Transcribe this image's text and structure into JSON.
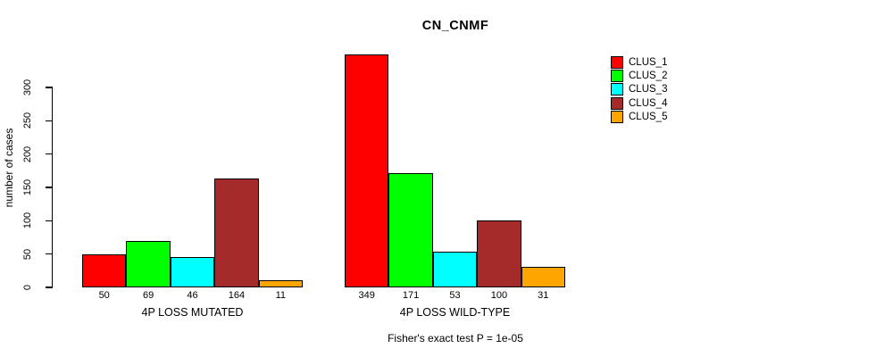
{
  "chart_data": {
    "type": "bar",
    "title": "CN_CNMF",
    "ylabel": "number of cases",
    "xlabel": "",
    "ylim": [
      0,
      300
    ],
    "yticks": [
      0,
      50,
      100,
      150,
      200,
      250,
      300
    ],
    "grid": false,
    "legend_position": "top-right",
    "series": [
      "CLUS_1",
      "CLUS_2",
      "CLUS_3",
      "CLUS_4",
      "CLUS_5"
    ],
    "colors": [
      "#FF0000",
      "#00FF00",
      "#00FFFF",
      "#A52A2A",
      "#FFA500"
    ],
    "groups": [
      {
        "label": "4P LOSS MUTATED",
        "values": [
          50,
          69,
          46,
          164,
          11
        ]
      },
      {
        "label": "4P LOSS WILD-TYPE",
        "values": [
          349,
          171,
          53,
          100,
          31
        ]
      }
    ],
    "annotation": "Fisher's exact test P = 1e-05"
  }
}
